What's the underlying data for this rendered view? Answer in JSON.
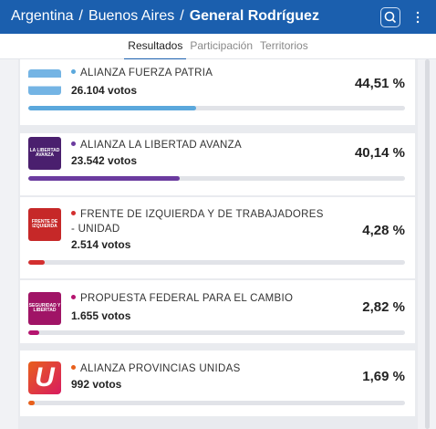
{
  "header": {
    "breadcrumb": [
      "Argentina",
      "/",
      "Buenos Aires",
      "/",
      "General Rodríguez"
    ]
  },
  "tabs": [
    "Resultados",
    "Participación",
    "Territorios"
  ],
  "results": [
    {
      "name": "ALIANZA FUERZA PATRIA",
      "votes": "26.104 votos",
      "share": {
        "value": 44.51,
        "label": "44,51 %"
      },
      "color": "#5ba8dc",
      "logo_text": ""
    },
    {
      "name": "ALIANZA LA LIBERTAD AVANZA",
      "votes": "23.542 votos",
      "share": {
        "value": 40.14,
        "label": "40,14 %"
      },
      "color": "#6b3b9f",
      "logo_text": "LA LIBERTAD AVANZA"
    },
    {
      "name": "FRENTE DE IZQUIERDA Y DE TRABAJADORES - UNIDAD",
      "votes": "2.514 votos",
      "share": {
        "value": 4.28,
        "label": "4,28 %"
      },
      "color": "#d32f2f",
      "logo_text": "FRENTE DE IZQUIERDA"
    },
    {
      "name": "PROPUESTA FEDERAL PARA EL CAMBIO",
      "votes": "1.655 votos",
      "share": {
        "value": 2.82,
        "label": "2,82 %"
      },
      "color": "#b5146f",
      "logo_text": "SEGURIDAD Y LIBERTAD"
    },
    {
      "name": "ALIANZA PROVINCIAS UNIDAS",
      "votes": "992 votos",
      "share": {
        "value": 1.69,
        "label": "1,69 %"
      },
      "color": "#e8601c",
      "logo_text": "U"
    }
  ]
}
